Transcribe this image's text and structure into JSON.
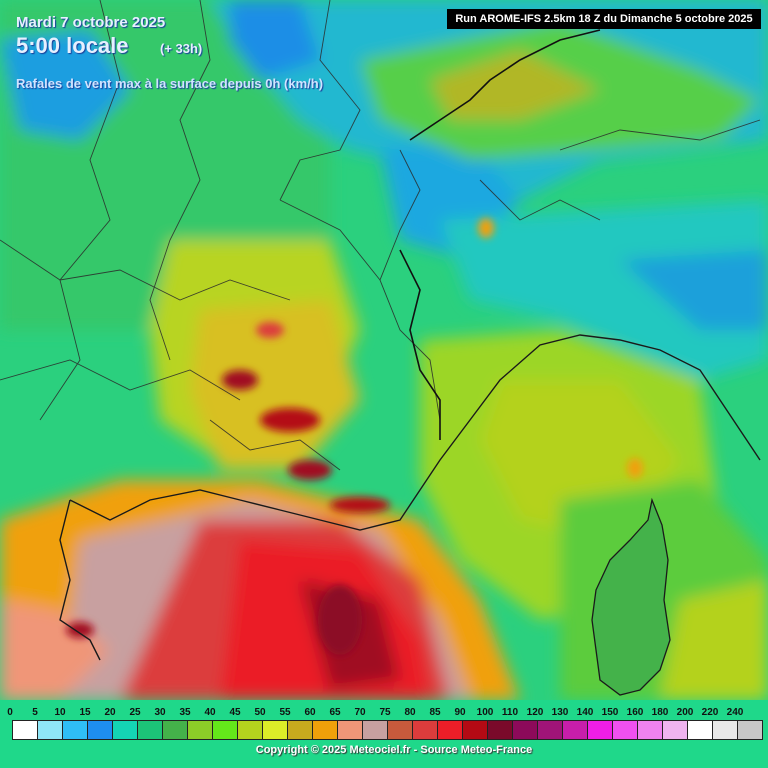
{
  "header": {
    "date": "Mardi 7 octobre 2025",
    "time": "5:00 locale",
    "lead": "(+ 33h)",
    "parameter": "Rafales de vent max à la surface depuis 0h (km/h)",
    "run": "Run AROME-IFS 2.5km 18 Z du Dimanche 5 octobre 2025"
  },
  "legend": {
    "ticks": [
      "0",
      "5",
      "10",
      "15",
      "20",
      "25",
      "30",
      "35",
      "40",
      "45",
      "50",
      "55",
      "60",
      "65",
      "70",
      "75",
      "80",
      "85",
      "90",
      "100",
      "110",
      "120",
      "130",
      "140",
      "150",
      "160",
      "180",
      "200",
      "220",
      "240"
    ],
    "colors": [
      "#ffffff",
      "#8fe6f7",
      "#2fbef5",
      "#1e8ef0",
      "#14d4b4",
      "#1cc478",
      "#44b24a",
      "#8ccc28",
      "#64e81a",
      "#b4d21e",
      "#dcec28",
      "#c8aa1e",
      "#f0a00a",
      "#f09678",
      "#c8a0a0",
      "#c85a3c",
      "#dc3c3c",
      "#eb1e28",
      "#b40a14",
      "#7a0a2a",
      "#8c0a5a",
      "#a01478",
      "#c81eaa",
      "#f01ee6",
      "#f050f0",
      "#f082f0",
      "#f0b4f0",
      "#ffffff",
      "#e8e8e8",
      "#c8c8c8"
    ]
  },
  "colors": {
    "sea_low": "#1fd88a",
    "land_low": "#22c972",
    "alps": "#22a4d8",
    "strong": "#e01e28",
    "very_strong": "#a01024"
  },
  "copyright": "Copyright © 2025 Meteociel.fr - Source Meteo-France"
}
